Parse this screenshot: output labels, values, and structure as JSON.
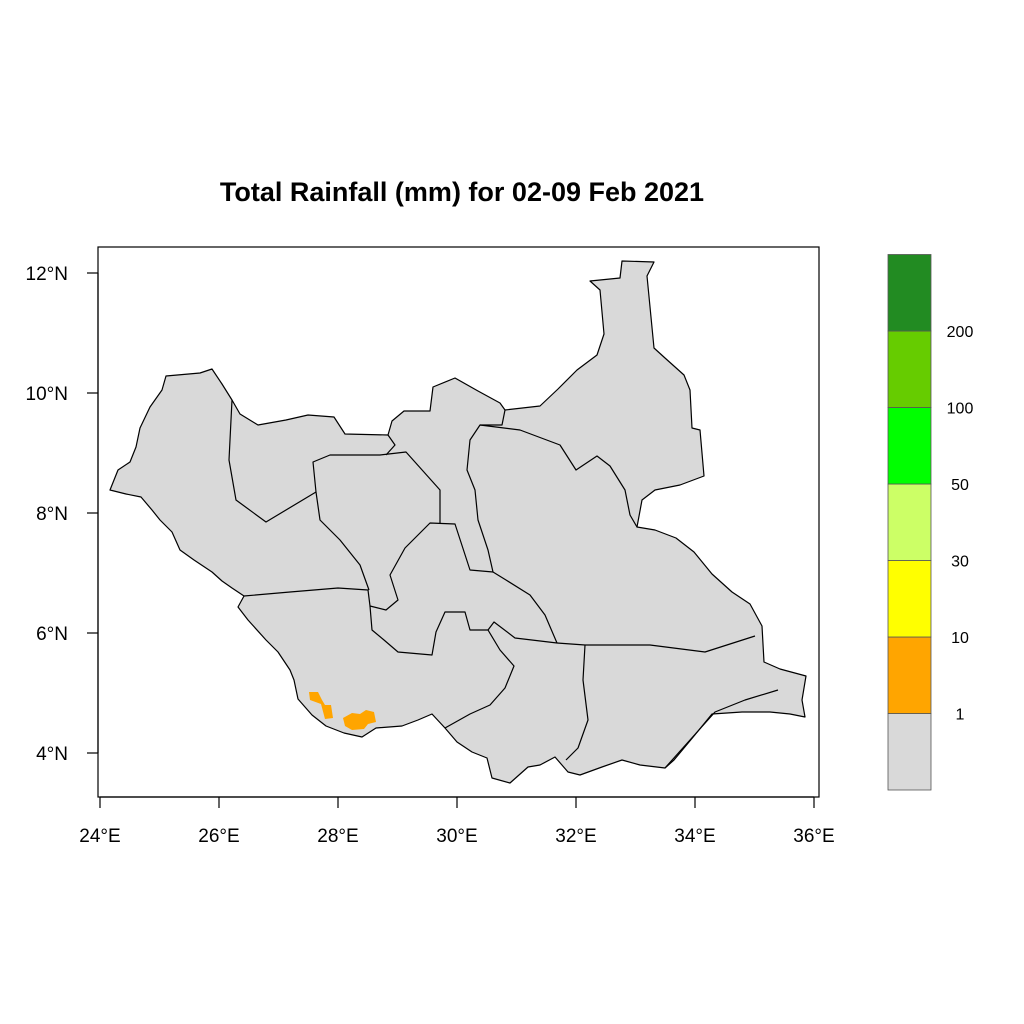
{
  "title": "Total Rainfall (mm) for 02-09 Feb 2021",
  "map": {
    "lon_range": [
      24,
      36
    ],
    "lat_range": [
      3.5,
      12.5
    ],
    "x_ticks": [
      {
        "value": 24,
        "label": "24°E"
      },
      {
        "value": 26,
        "label": "26°E"
      },
      {
        "value": 28,
        "label": "28°E"
      },
      {
        "value": 30,
        "label": "30°E"
      },
      {
        "value": 32,
        "label": "32°E"
      },
      {
        "value": 34,
        "label": "34°E"
      },
      {
        "value": 36,
        "label": "36°E"
      }
    ],
    "y_ticks": [
      {
        "value": 12,
        "label": "12°N"
      },
      {
        "value": 10,
        "label": "10°N"
      },
      {
        "value": 8,
        "label": "8°N"
      },
      {
        "value": 6,
        "label": "6°N"
      },
      {
        "value": 4,
        "label": "4°N"
      }
    ],
    "land_color": "#d9d9d9",
    "rain_areas": [
      {
        "class": "1-10",
        "color": "#ffa500"
      }
    ]
  },
  "legend": {
    "bins": [
      {
        "color": "#d9d9d9"
      },
      {
        "color": "#ffa500"
      },
      {
        "color": "#ffff00"
      },
      {
        "color": "#ccff66"
      },
      {
        "color": "#00ff00"
      },
      {
        "color": "#66cc00"
      },
      {
        "color": "#228b22"
      }
    ],
    "labels": [
      "1",
      "10",
      "30",
      "50",
      "100",
      "200"
    ]
  }
}
